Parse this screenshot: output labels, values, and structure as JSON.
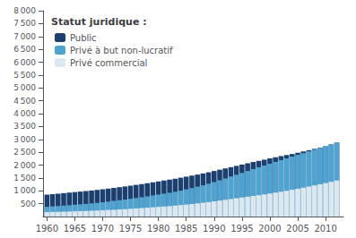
{
  "chart_data": {
    "type": "bar",
    "stacked": true,
    "legend": "upper left",
    "legend_title": "Statut juridique :",
    "grid": false,
    "x": [
      1960,
      1961,
      1962,
      1963,
      1964,
      1965,
      1966,
      1967,
      1968,
      1969,
      1970,
      1971,
      1972,
      1973,
      1974,
      1975,
      1976,
      1977,
      1978,
      1979,
      1980,
      1981,
      1982,
      1983,
      1984,
      1985,
      1986,
      1987,
      1988,
      1989,
      1990,
      1991,
      1992,
      1993,
      1994,
      1995,
      1996,
      1997,
      1998,
      1999,
      2000,
      2001,
      2002,
      2003,
      2004,
      2005,
      2006,
      2007,
      2008,
      2009,
      2010,
      2011,
      2012
    ],
    "series": [
      {
        "name": "Public",
        "color": "#1b3f6e",
        "values": [
          850,
          870,
          890,
          910,
          930,
          950,
          970,
          990,
          1010,
          1035,
          1060,
          1085,
          1110,
          1140,
          1170,
          1200,
          1230,
          1260,
          1295,
          1330,
          1365,
          1400,
          1435,
          1470,
          1510,
          1550,
          1590,
          1630,
          1675,
          1720,
          1770,
          1820,
          1870,
          1920,
          1970,
          2020,
          2070,
          2120,
          2165,
          2210,
          2260,
          2305,
          2350,
          2390,
          2430,
          2480,
          2530,
          2580,
          2630,
          2680,
          2730,
          2800,
          2870
        ]
      },
      {
        "name": "Privé à but non-lucratif",
        "color": "#4fa3d1",
        "values": [
          380,
          395,
          410,
          425,
          440,
          460,
          475,
          490,
          510,
          530,
          555,
          580,
          605,
          635,
          660,
          690,
          720,
          750,
          785,
          820,
          855,
          890,
          925,
          960,
          1005,
          1055,
          1105,
          1160,
          1215,
          1275,
          1340,
          1410,
          1480,
          1555,
          1625,
          1695,
          1770,
          1845,
          1915,
          1985,
          2055,
          2125,
          2195,
          2260,
          2330,
          2400,
          2465,
          2535,
          2600,
          2670,
          2740,
          2810,
          2880
        ]
      },
      {
        "name": "Privé commercial",
        "color": "#dce8f0",
        "values": [
          170,
          178,
          183,
          188,
          196,
          204,
          212,
          218,
          224,
          234,
          244,
          255,
          265,
          275,
          285,
          300,
          315,
          330,
          345,
          360,
          375,
          390,
          405,
          425,
          445,
          465,
          485,
          510,
          535,
          560,
          590,
          620,
          650,
          680,
          710,
          740,
          770,
          800,
          830,
          860,
          895,
          930,
          965,
          1000,
          1040,
          1080,
          1120,
          1165,
          1210,
          1255,
          1300,
          1350,
          1400
        ]
      }
    ],
    "xlim": [
      1959.3,
      2013.2
    ],
    "xticks": [
      1960,
      1965,
      1970,
      1975,
      1980,
      1985,
      1990,
      1995,
      2000,
      2005,
      2010
    ],
    "ylim": [
      0,
      8000
    ],
    "yticks": [
      500,
      {
        "value": 1000,
        "label": "1 000"
      },
      {
        "value": 1500,
        "label": "1 500"
      },
      {
        "value": 2000,
        "label": "2 000"
      },
      {
        "value": 2500,
        "label": "2 500"
      },
      {
        "value": 3000,
        "label": "3 000"
      },
      {
        "value": 3500,
        "label": "3 500"
      },
      {
        "value": 4000,
        "label": "4 000"
      },
      {
        "value": 4500,
        "label": "4 500"
      },
      {
        "value": 5000,
        "label": "5 000"
      },
      {
        "value": 5500,
        "label": "5 500"
      },
      {
        "value": 6000,
        "label": "6 000"
      },
      {
        "value": 6500,
        "label": "6 500"
      },
      {
        "value": 7000,
        "label": "7 000"
      },
      {
        "value": 7500,
        "label": "7 500"
      },
      {
        "value": 8000,
        "label": "8 000"
      }
    ]
  }
}
